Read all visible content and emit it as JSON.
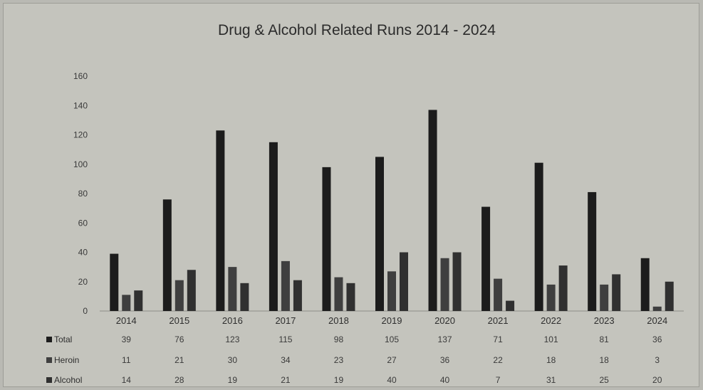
{
  "chart_data": {
    "type": "bar",
    "title": "Drug & Alcohol Related Runs 2014 - 2024",
    "categories": [
      "2014",
      "2015",
      "2016",
      "2017",
      "2018",
      "2019",
      "2020",
      "2021",
      "2022",
      "2023",
      "2024"
    ],
    "series": [
      {
        "name": "Total",
        "values": [
          39,
          76,
          123,
          115,
          98,
          105,
          137,
          71,
          101,
          81,
          36
        ]
      },
      {
        "name": "Heroin",
        "values": [
          11,
          21,
          30,
          34,
          23,
          27,
          36,
          22,
          18,
          18,
          3
        ]
      },
      {
        "name": "Alcohol",
        "values": [
          14,
          28,
          19,
          21,
          19,
          40,
          40,
          7,
          31,
          25,
          20
        ]
      }
    ],
    "ylim": [
      0,
      160
    ],
    "yticks": [
      "0",
      "20",
      "40",
      "60",
      "80",
      "100",
      "120",
      "140",
      "160"
    ],
    "legend": "data-table-bottom",
    "grid": false
  },
  "colors": {
    "background": "#c4c4bd",
    "series": [
      "#1c1c1c",
      "#3f3f3f",
      "#303030"
    ]
  }
}
